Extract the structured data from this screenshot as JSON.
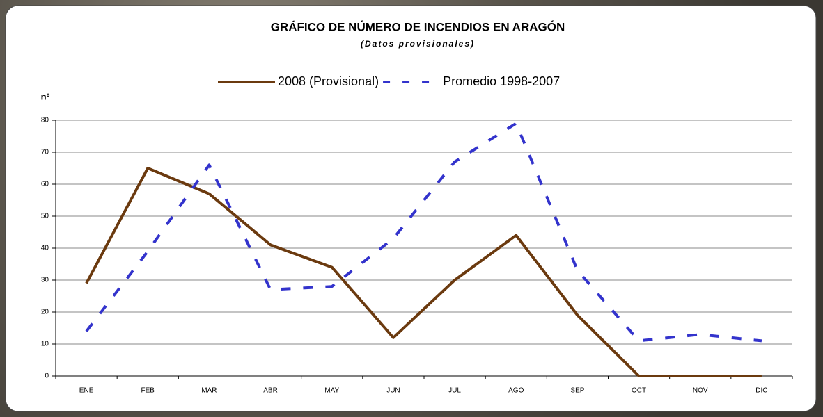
{
  "chart_data": {
    "type": "line",
    "title": "GRÁFICO DE NÚMERO DE INCENDIOS EN ARAGÓN",
    "subtitle": "(Datos provisionales)",
    "y_label": "nº",
    "categories": [
      "ENE",
      "FEB",
      "MAR",
      "ABR",
      "MAY",
      "JUN",
      "JUL",
      "AGO",
      "SEP",
      "OCT",
      "NOV",
      "DIC"
    ],
    "series": [
      {
        "name": "2008 (Provisional)",
        "color": "#6b3a0f",
        "dashed": false,
        "values": [
          29,
          65,
          57,
          41,
          34,
          12,
          30,
          44,
          19,
          0,
          0,
          0
        ]
      },
      {
        "name": "Promedio 1998-2007",
        "color": "#3333cc",
        "dashed": true,
        "values": [
          14,
          39,
          66,
          27,
          28,
          43,
          67,
          79,
          33,
          11,
          13,
          11
        ]
      }
    ],
    "ylim": [
      0,
      80
    ],
    "yticks": [
      0,
      10,
      20,
      30,
      40,
      50,
      60,
      70,
      80
    ],
    "grid": true
  }
}
